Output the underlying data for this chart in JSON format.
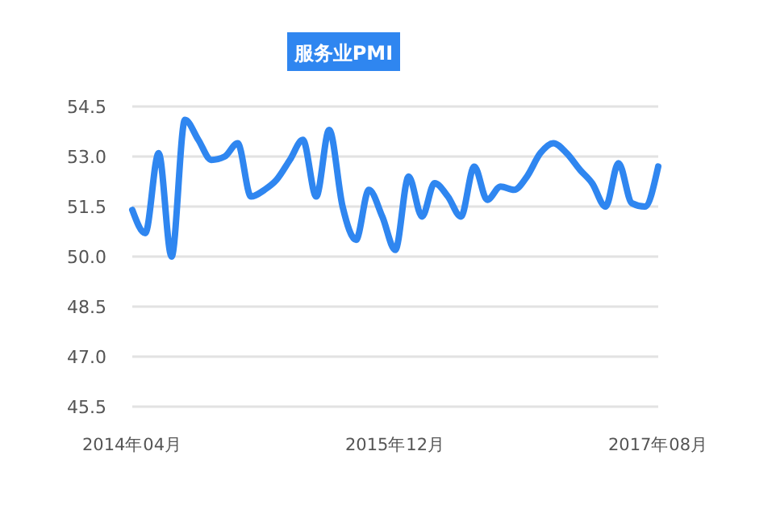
{
  "chart_data": {
    "type": "line",
    "title": "服务业PMI",
    "x": [
      "2014-04",
      "2014-05",
      "2014-06",
      "2014-07",
      "2014-08",
      "2014-09",
      "2014-10",
      "2014-11",
      "2014-12",
      "2015-01",
      "2015-02",
      "2015-03",
      "2015-04",
      "2015-05",
      "2015-06",
      "2015-07",
      "2015-08",
      "2015-09",
      "2015-10",
      "2015-11",
      "2015-12",
      "2016-01",
      "2016-02",
      "2016-03",
      "2016-04",
      "2016-05",
      "2016-06",
      "2016-07",
      "2016-08",
      "2016-09",
      "2016-10",
      "2016-11",
      "2016-12",
      "2017-01",
      "2017-02",
      "2017-03",
      "2017-04",
      "2017-05",
      "2017-06",
      "2017-07",
      "2017-08"
    ],
    "series": [
      {
        "color": "#2f86f0",
        "values": [
          51.4,
          50.7,
          53.1,
          50.0,
          54.1,
          53.5,
          52.9,
          53.0,
          53.4,
          51.8,
          52.0,
          52.3,
          52.9,
          53.5,
          51.8,
          53.8,
          51.5,
          50.5,
          52.0,
          51.2,
          50.2,
          52.4,
          51.2,
          52.2,
          51.8,
          51.2,
          52.7,
          51.7,
          52.1,
          52.0,
          52.4,
          53.1,
          53.4,
          53.1,
          52.6,
          52.2,
          51.5,
          52.8,
          51.6,
          51.5,
          52.7
        ]
      }
    ],
    "xlim": [
      "2014-04",
      "2017-08"
    ],
    "xticks": [
      {
        "value": "2014-04",
        "label": "2014年04月"
      },
      {
        "value": "2015-12",
        "label": "2015年12月"
      },
      {
        "value": "2017-08",
        "label": "2017年08月"
      }
    ],
    "ylim": [
      45.5,
      54.5
    ],
    "yticks": [
      {
        "value": 45.5,
        "label": "45.5"
      },
      {
        "value": 47,
        "label": "47.0"
      },
      {
        "value": 48.5,
        "label": "48.5"
      },
      {
        "value": 50,
        "label": "50.0"
      },
      {
        "value": 51.5,
        "label": "51.5"
      },
      {
        "value": 53,
        "label": "53.0"
      },
      {
        "value": 54.5,
        "label": "54.5"
      }
    ],
    "grid": "y",
    "marker": "none",
    "line_style": "solid"
  }
}
